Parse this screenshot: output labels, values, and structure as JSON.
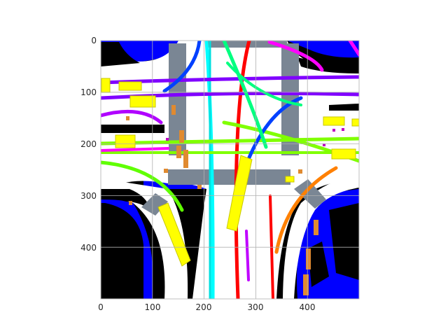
{
  "figure": {
    "x_ticks": [
      "0",
      "100",
      "200",
      "300",
      "400"
    ],
    "y_ticks": [
      "0",
      "100",
      "200",
      "300",
      "400"
    ],
    "x_range": [
      0,
      500
    ],
    "y_range": [
      500,
      0
    ],
    "grid": true
  },
  "palette": {
    "road": "#ffffff",
    "offroad": "#000000",
    "parking": "#0000ff",
    "crosswalk": "#7a8694",
    "vehicle": "#ffff00",
    "pedestrian": "#e08a30",
    "grid": "#b0b0b0",
    "trajectory_colors": [
      "#00ffff",
      "#ff0000",
      "#8000ff",
      "#80ff00",
      "#0040ff",
      "#ff00ff",
      "#00ff80",
      "#ff8000"
    ]
  }
}
